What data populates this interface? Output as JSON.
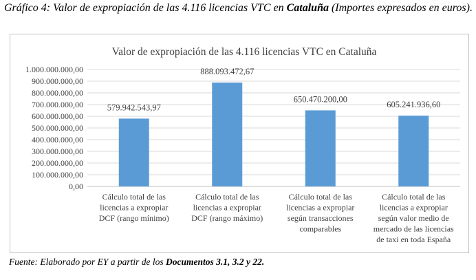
{
  "caption": {
    "prefix": "Gráfico 4: Valor de expropiación de las 4.116 licencias VTC en ",
    "bold": "Cataluña",
    "suffix": " (Importes expresados en euros)."
  },
  "source": {
    "prefix": "Fuente: Elaborado por EY a partir de los ",
    "bold": "Documentos 3.1, 3.2 y 22."
  },
  "colors": {
    "bar": "#5b9bd5",
    "grid": "#d9d9d9",
    "axis": "#bfbfbf"
  },
  "chart_data": {
    "type": "bar",
    "title": "Valor de expropiación de las 4.116 licencias VTC en Cataluña",
    "xlabel": "",
    "ylabel": "",
    "ylim": [
      0,
      1000000000
    ],
    "grid": true,
    "legend": "none",
    "yticks": [
      "0,00",
      "100.000.000,00",
      "200.000.000,00",
      "300.000.000,00",
      "400.000.000,00",
      "500.000.000,00",
      "600.000.000,00",
      "700.000.000,00",
      "800.000.000,00",
      "900.000.000,00",
      "1.000.000.000,00"
    ],
    "categories": [
      [
        "Cálculo total de las",
        "licencias a expropiar",
        "DCF (rango mínimo)"
      ],
      [
        "Cálculo total de las",
        "licencias a expropiar",
        "DCF (rango máximo)"
      ],
      [
        "Cálculo total de las",
        "licencias a expropiar",
        "según transacciones",
        "comparables"
      ],
      [
        "Cálculo total de las",
        "licencias a expropiar",
        "según valor medio de",
        "mercado de las licencias",
        "de taxi en toda España"
      ]
    ],
    "values": [
      579942543.97,
      888093472.67,
      650470200.0,
      605241936.6
    ],
    "data_labels": [
      "579.942.543,97",
      "888.093.472,67",
      "650.470.200,00",
      "605.241.936,60"
    ]
  }
}
